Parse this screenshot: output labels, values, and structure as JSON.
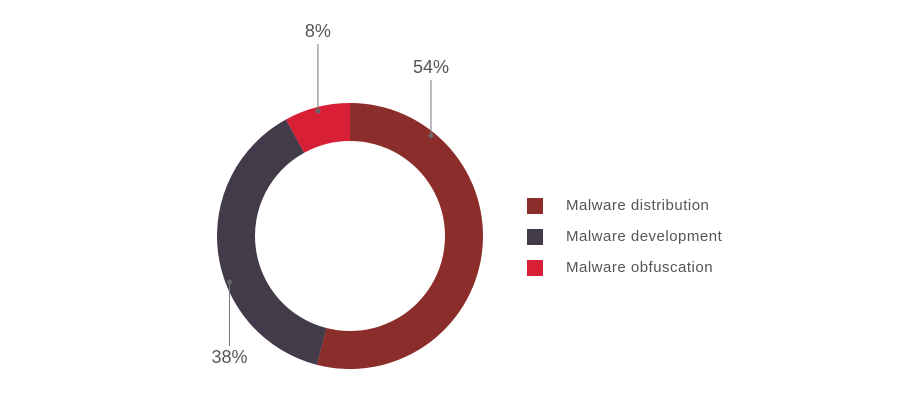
{
  "chart_data": {
    "type": "pie",
    "donut": true,
    "categories": [
      "Malware distribution",
      "Malware development",
      "Malware obfuscation"
    ],
    "values": [
      54,
      38,
      8
    ],
    "value_labels": [
      "54%",
      "38%",
      "8%"
    ],
    "colors": [
      "#8b2e2b",
      "#433a4a",
      "#d91f36"
    ],
    "legend": "right"
  }
}
